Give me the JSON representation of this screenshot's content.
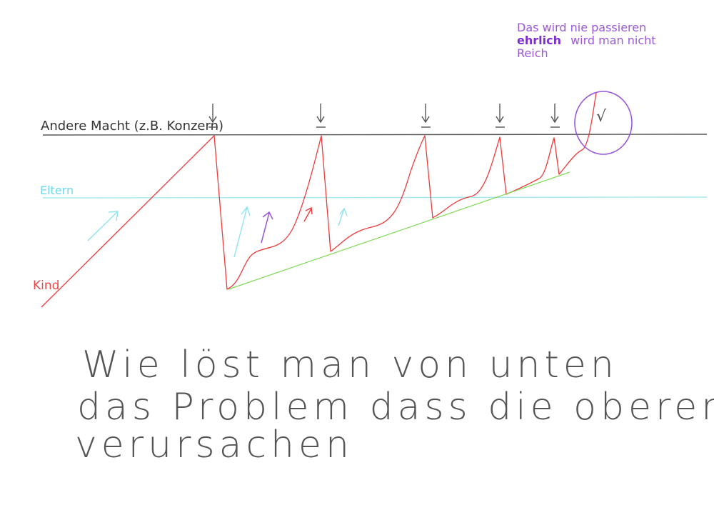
{
  "labels": {
    "upper_line": "Andere Macht (z.B. Konzern)",
    "middle_line": "Eltern",
    "lower_label": "Kind"
  },
  "note": {
    "line1": "Das wird nie passieren",
    "line2_bold": "ehrlich",
    "line2_rest": "wird man nicht",
    "line3": "Reich"
  },
  "checkmark": "√",
  "question": {
    "line1": "Wie löst man von unten",
    "line2": "das Problem dass die oberen",
    "line3": "verursachen"
  },
  "colors": {
    "upper_line": "#555555",
    "parent_line": "#9fe6ef",
    "red_curve": "#ef3a3a",
    "green_trend": "#7ed957",
    "cyan_arrow": "#8fe3f0",
    "purple": "#9a58d8",
    "text": "#555555"
  }
}
